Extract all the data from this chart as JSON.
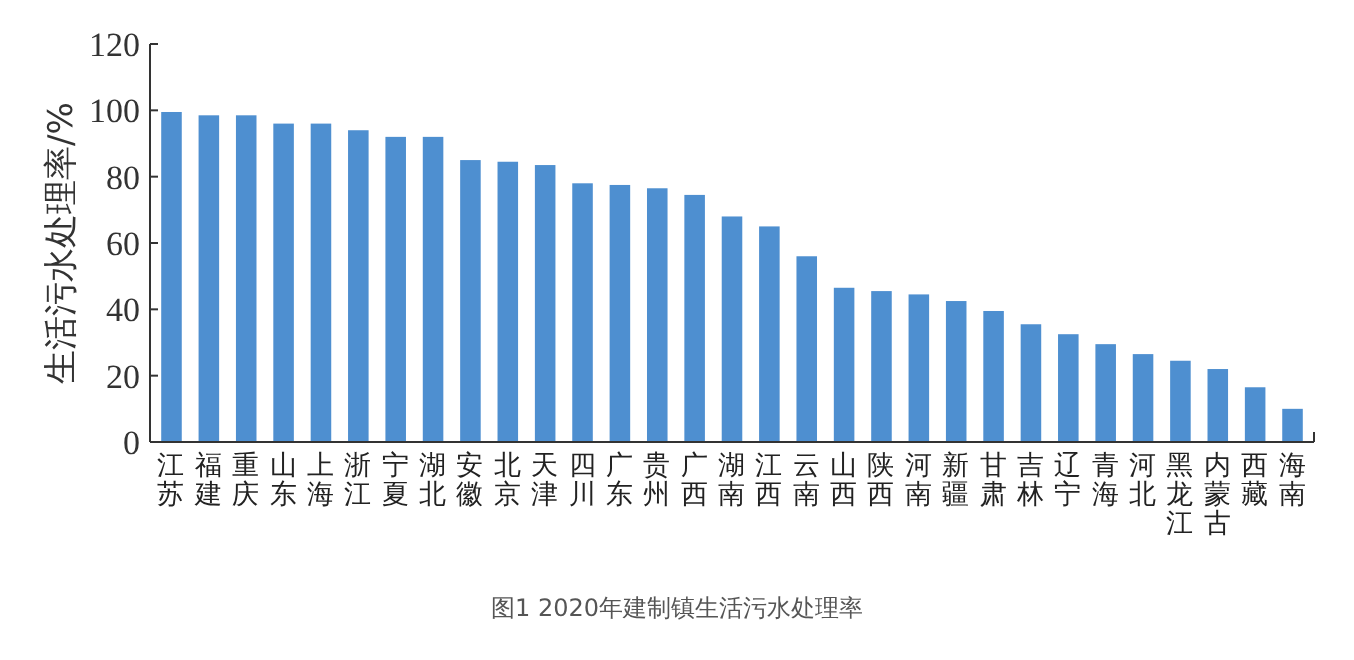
{
  "chart_data": {
    "type": "bar",
    "title": "图1 2020年建制镇生活污水处理率",
    "ylabel": "生活污水处理率/%",
    "categories": [
      "江苏",
      "福建",
      "重庆",
      "山东",
      "上海",
      "浙江",
      "宁夏",
      "湖北",
      "安徽",
      "北京",
      "天津",
      "四川",
      "广东",
      "贵州",
      "广西",
      "湖南",
      "江西",
      "云南",
      "山西",
      "陕西",
      "河南",
      "新疆",
      "甘肃",
      "吉林",
      "辽宁",
      "青海",
      "河北",
      "黑龙江",
      "内蒙古",
      "西藏",
      "海南"
    ],
    "values": [
      99.5,
      98.5,
      98.5,
      96,
      96,
      94,
      92,
      92,
      85,
      84.5,
      83.5,
      78,
      77.5,
      76.5,
      74.5,
      68,
      65,
      56,
      46.5,
      45.5,
      44.5,
      42.5,
      39.5,
      35.5,
      32.5,
      29.5,
      26.5,
      24.5,
      22,
      16.5,
      10
    ],
    "color": "#4e8fd0",
    "ylim": [
      0,
      120
    ],
    "yticks": [
      0,
      20,
      40,
      60,
      80,
      100,
      120
    ]
  }
}
